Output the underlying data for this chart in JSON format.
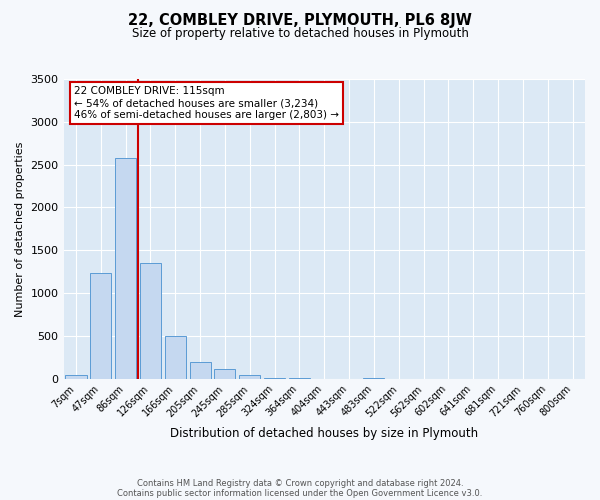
{
  "title": "22, COMBLEY DRIVE, PLYMOUTH, PL6 8JW",
  "subtitle": "Size of property relative to detached houses in Plymouth",
  "xlabel": "Distribution of detached houses by size in Plymouth",
  "ylabel": "Number of detached properties",
  "bar_labels": [
    "7sqm",
    "47sqm",
    "86sqm",
    "126sqm",
    "166sqm",
    "205sqm",
    "245sqm",
    "285sqm",
    "324sqm",
    "364sqm",
    "404sqm",
    "443sqm",
    "483sqm",
    "522sqm",
    "562sqm",
    "602sqm",
    "641sqm",
    "681sqm",
    "721sqm",
    "760sqm",
    "800sqm"
  ],
  "bar_values": [
    50,
    1230,
    2580,
    1350,
    500,
    200,
    110,
    50,
    10,
    5,
    0,
    0,
    5,
    0,
    0,
    0,
    0,
    0,
    0,
    0,
    0
  ],
  "bar_color": "#c5d8f0",
  "bar_edge_color": "#5b9bd5",
  "ylim": [
    0,
    3500
  ],
  "yticks": [
    0,
    500,
    1000,
    1500,
    2000,
    2500,
    3000,
    3500
  ],
  "vline_color": "#cc0000",
  "annotation_title": "22 COMBLEY DRIVE: 115sqm",
  "annotation_line1": "← 54% of detached houses are smaller (3,234)",
  "annotation_line2": "46% of semi-detached houses are larger (2,803) →",
  "annotation_box_color": "#cc0000",
  "plot_bg_color": "#dce9f5",
  "fig_bg_color": "#f5f8fc",
  "footer_line1": "Contains HM Land Registry data © Crown copyright and database right 2024.",
  "footer_line2": "Contains public sector information licensed under the Open Government Licence v3.0."
}
